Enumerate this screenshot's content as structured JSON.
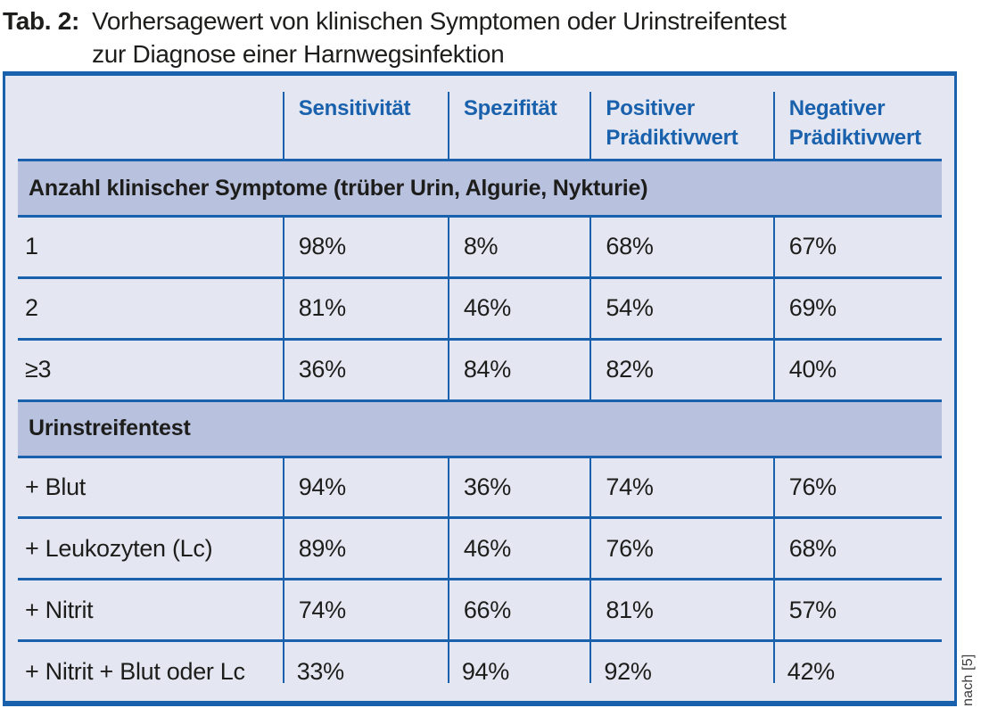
{
  "caption": {
    "label": "Tab. 2:",
    "line1": "Vorhersagewert von klinischen Symptomen oder Urinstreifentest",
    "line2": "zur Diagnose einer Harnwegsinfektion"
  },
  "table": {
    "columns": [
      "",
      "Sensitivität",
      "Spezifität",
      "Positiver Prädiktivwert",
      "Negativer Prädiktivwert"
    ],
    "sections": [
      {
        "header": "Anzahl klinischer Symptome (trüber Urin, Algurie, Nykturie)",
        "rows": [
          {
            "label": "1",
            "values": [
              "98%",
              "8%",
              "68%",
              "67%"
            ]
          },
          {
            "label": "2",
            "values": [
              "81%",
              "46%",
              "54%",
              "69%"
            ]
          },
          {
            "label": "≥3",
            "values": [
              "36%",
              "84%",
              "82%",
              "40%"
            ]
          }
        ]
      },
      {
        "header": "Urinstreifentest",
        "rows": [
          {
            "label": "+ Blut",
            "values": [
              "94%",
              "36%",
              "74%",
              "76%"
            ]
          },
          {
            "label": "+ Leukozyten (Lc)",
            "values": [
              "89%",
              "46%",
              "76%",
              "68%"
            ]
          },
          {
            "label": "+ Nitrit",
            "values": [
              "74%",
              "66%",
              "81%",
              "57%"
            ]
          },
          {
            "label": "+ Nitrit + Blut oder Lc",
            "values": [
              "33%",
              "94%",
              "92%",
              "42%"
            ]
          }
        ]
      }
    ]
  },
  "source_note": "nach [5]",
  "colors": {
    "line_blue": "#1961ac",
    "header_text_blue": "#1961ac",
    "cell_background": "#e4e7f2",
    "band_background": "#b8c1de",
    "body_text": "#1d1d1b"
  }
}
